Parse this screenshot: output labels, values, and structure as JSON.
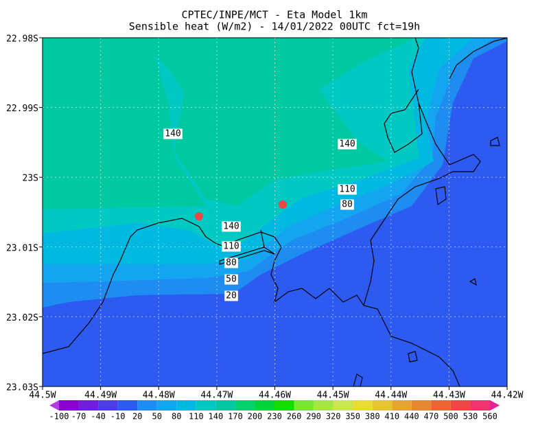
{
  "title": "CPTEC/INPE/MCT -  Eta Model 1km",
  "subtitle": "Sensible heat (W/m2) - 14/01/2022 00UTC fct=19h",
  "lat_labels": [
    "22.98S",
    "22.99S",
    "23S",
    "23.01S",
    "23.02S",
    "23.03S"
  ],
  "lon_labels": [
    "44.5W",
    "44.49W",
    "44.48W",
    "44.47W",
    "44.46W",
    "44.45W",
    "44.44W",
    "44.43W",
    "44.42W"
  ],
  "contour_labels": [
    140,
    140,
    110,
    80,
    140,
    110,
    80,
    50,
    20
  ],
  "colorbar": {
    "labels": [
      -100,
      -70,
      -40,
      -10,
      20,
      50,
      80,
      110,
      140,
      170,
      200,
      230,
      260,
      290,
      320,
      350,
      380,
      410,
      440,
      470,
      500,
      530,
      560
    ],
    "colors": [
      "#b43cdc",
      "#8c00d2",
      "#6e1edc",
      "#4b3ce6",
      "#2d5af0",
      "#1e8cf0",
      "#14a5f0",
      "#00b9e1",
      "#00c8c3",
      "#00c8a0",
      "#00d26e",
      "#00d23c",
      "#14dc00",
      "#78e632",
      "#a5e646",
      "#c8e650",
      "#e6dc32",
      "#e6c332",
      "#e6a532",
      "#e68732",
      "#eb6432",
      "#f04646",
      "#f0326e",
      "#eb1e96"
    ]
  }
}
